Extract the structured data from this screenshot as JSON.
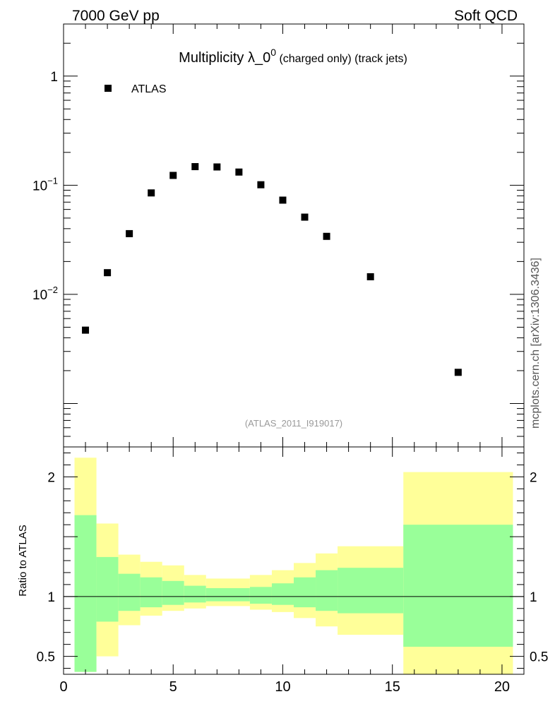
{
  "header": {
    "left": "7000 GeV pp",
    "right": "Soft QCD"
  },
  "side_label": "mcplots.cern.ch [arXiv:1306.3436]",
  "chart_data": [
    {
      "type": "scatter",
      "title": {
        "main": "Multiplicity λ_0",
        "sup": "0",
        "small": " (charged only) (track jets)"
      },
      "analysis_label": "(ATLAS_2011_I919017)",
      "legend": {
        "placement": "top-left",
        "entries": [
          {
            "name": "ATLAS",
            "marker": "square",
            "color": "#000000"
          }
        ]
      },
      "yscale": "log",
      "ylim": [
        0.0004,
        3
      ],
      "xlim": [
        0,
        21
      ],
      "y_ticks": [
        {
          "value": 1,
          "base": "1",
          "exp": ""
        },
        {
          "value": 0.1,
          "base": "10",
          "exp": "−1"
        },
        {
          "value": 0.01,
          "base": "10",
          "exp": "−2"
        }
      ],
      "series": [
        {
          "name": "ATLAS",
          "x": [
            1,
            2,
            3,
            4,
            5,
            6,
            7,
            8,
            9,
            10,
            11,
            12,
            14,
            18
          ],
          "y": [
            0.0047,
            0.0158,
            0.036,
            0.085,
            0.123,
            0.148,
            0.147,
            0.132,
            0.101,
            0.073,
            0.051,
            0.034,
            0.0145,
            0.00193
          ]
        }
      ]
    },
    {
      "type": "area",
      "ylabel": "Ratio to ATLAS",
      "ylim": [
        0.35,
        2.25
      ],
      "xlim": [
        0,
        21
      ],
      "x_ticks": [
        0,
        5,
        10,
        15,
        20
      ],
      "y_ticks": [
        {
          "value": 0.5,
          "label": "0.5"
        },
        {
          "value": 1,
          "label": "1"
        },
        {
          "value": 2,
          "label": "2"
        }
      ],
      "reference_line": 1,
      "bins": [
        {
          "lo": 0.5,
          "hi": 1.5,
          "yellow": [
            0.37,
            2.16
          ],
          "green": [
            0.37,
            1.68
          ]
        },
        {
          "lo": 1.5,
          "hi": 2.5,
          "yellow": [
            0.5,
            1.61
          ],
          "green": [
            0.79,
            1.33
          ]
        },
        {
          "lo": 2.5,
          "hi": 3.5,
          "yellow": [
            0.76,
            1.35
          ],
          "green": [
            0.88,
            1.19
          ]
        },
        {
          "lo": 3.5,
          "hi": 4.5,
          "yellow": [
            0.84,
            1.29
          ],
          "green": [
            0.91,
            1.16
          ]
        },
        {
          "lo": 4.5,
          "hi": 5.5,
          "yellow": [
            0.88,
            1.26
          ],
          "green": [
            0.93,
            1.13
          ]
        },
        {
          "lo": 5.5,
          "hi": 6.5,
          "yellow": [
            0.9,
            1.18
          ],
          "green": [
            0.95,
            1.09
          ]
        },
        {
          "lo": 6.5,
          "hi": 8.5,
          "yellow": [
            0.92,
            1.15
          ],
          "green": [
            0.96,
            1.07
          ]
        },
        {
          "lo": 8.5,
          "hi": 9.5,
          "yellow": [
            0.89,
            1.18
          ],
          "green": [
            0.94,
            1.08
          ]
        },
        {
          "lo": 9.5,
          "hi": 10.5,
          "yellow": [
            0.87,
            1.22
          ],
          "green": [
            0.93,
            1.11
          ]
        },
        {
          "lo": 10.5,
          "hi": 11.5,
          "yellow": [
            0.82,
            1.28
          ],
          "green": [
            0.91,
            1.16
          ]
        },
        {
          "lo": 11.5,
          "hi": 12.5,
          "yellow": [
            0.75,
            1.36
          ],
          "green": [
            0.88,
            1.22
          ]
        },
        {
          "lo": 12.5,
          "hi": 15.5,
          "yellow": [
            0.68,
            1.42
          ],
          "green": [
            0.86,
            1.24
          ]
        },
        {
          "lo": 15.5,
          "hi": 20.5,
          "yellow": [
            0.35,
            2.04
          ],
          "green": [
            0.58,
            1.6
          ]
        }
      ],
      "colors": {
        "yellow": "#ffff99",
        "green": "#99ff99"
      }
    }
  ]
}
